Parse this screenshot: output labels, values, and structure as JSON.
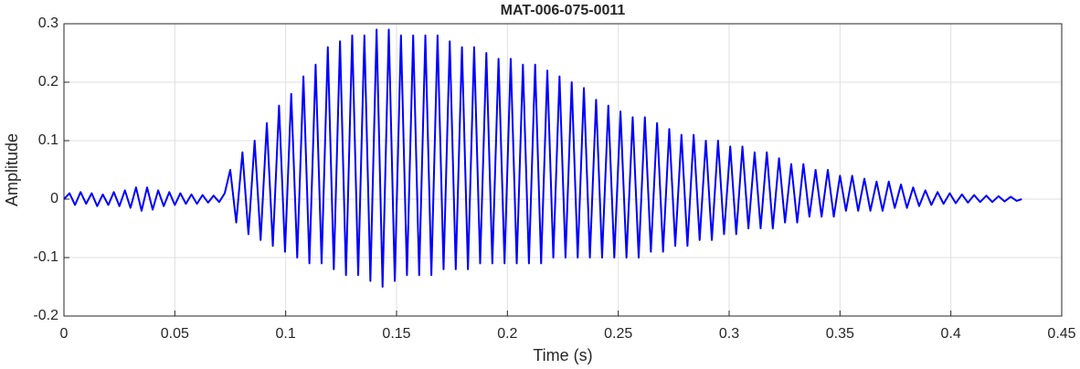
{
  "chart_data": {
    "type": "line",
    "title": "MAT-006-075-0011",
    "x_label": "Time (s)",
    "y_label": "Amplitude",
    "xlim": [
      0,
      0.45
    ],
    "ylim": [
      -0.2,
      0.3
    ],
    "xticks": [
      0,
      0.05,
      0.1,
      0.15,
      0.2,
      0.25,
      0.3,
      0.35,
      0.4,
      0.45
    ],
    "yticks": [
      -0.2,
      -0.1,
      0,
      0.1,
      0.2,
      0.3
    ],
    "grid": true,
    "x": [
      0,
      0.0025,
      0.005,
      0.0075,
      0.01,
      0.0125,
      0.015,
      0.0175,
      0.02,
      0.0225,
      0.025,
      0.0275,
      0.03,
      0.0325,
      0.035,
      0.0375,
      0.04,
      0.0425,
      0.045,
      0.0475,
      0.05,
      0.0525,
      0.055,
      0.0575,
      0.06,
      0.0625,
      0.065,
      0.0675,
      0.07,
      0.0725,
      0.075,
      0.0777,
      0.0805,
      0.0832,
      0.086,
      0.0887,
      0.0915,
      0.0942,
      0.097,
      0.0997,
      0.1025,
      0.1052,
      0.108,
      0.1107,
      0.1135,
      0.1162,
      0.119,
      0.1217,
      0.1245,
      0.1272,
      0.13,
      0.1327,
      0.1355,
      0.1382,
      0.141,
      0.1437,
      0.1465,
      0.1492,
      0.152,
      0.1547,
      0.1575,
      0.1602,
      0.163,
      0.1657,
      0.1685,
      0.1712,
      0.174,
      0.1767,
      0.1795,
      0.1822,
      0.185,
      0.1877,
      0.1905,
      0.1932,
      0.196,
      0.1987,
      0.2015,
      0.2042,
      0.207,
      0.2097,
      0.2125,
      0.2152,
      0.218,
      0.2207,
      0.2235,
      0.2262,
      0.229,
      0.2317,
      0.2345,
      0.2372,
      0.24,
      0.2427,
      0.2455,
      0.2482,
      0.251,
      0.2537,
      0.2565,
      0.2592,
      0.262,
      0.2647,
      0.2675,
      0.2702,
      0.273,
      0.2757,
      0.2785,
      0.2812,
      0.284,
      0.2867,
      0.2895,
      0.2922,
      0.295,
      0.2977,
      0.3005,
      0.3032,
      0.306,
      0.3087,
      0.3115,
      0.3142,
      0.317,
      0.3197,
      0.3225,
      0.3252,
      0.328,
      0.3307,
      0.3335,
      0.3362,
      0.339,
      0.3417,
      0.3445,
      0.3472,
      0.35,
      0.3527,
      0.3555,
      0.3582,
      0.361,
      0.3637,
      0.3665,
      0.3692,
      0.372,
      0.3747,
      0.3775,
      0.3802,
      0.383,
      0.3857,
      0.3885,
      0.3912,
      0.394,
      0.3967,
      0.3995,
      0.4022,
      0.405,
      0.4077,
      0.4105,
      0.4132,
      0.416,
      0.4187,
      0.4215,
      0.4242,
      0.427,
      0.4297,
      0.432
    ],
    "series": [
      {
        "color": "#0000ff",
        "values": [
          0,
          0.01,
          -0.01,
          0.012,
          -0.008,
          0.01,
          -0.012,
          0.008,
          -0.01,
          0.012,
          -0.012,
          0.015,
          -0.015,
          0.02,
          -0.02,
          0.02,
          -0.018,
          0.015,
          -0.012,
          0.012,
          -0.01,
          0.01,
          -0.008,
          0.008,
          -0.008,
          0.007,
          -0.006,
          0.006,
          -0.005,
          0.01,
          0.05,
          -0.04,
          0.08,
          -0.06,
          0.1,
          -0.07,
          0.13,
          -0.08,
          0.16,
          -0.09,
          0.18,
          -0.1,
          0.21,
          -0.11,
          0.23,
          -0.11,
          0.26,
          -0.12,
          0.27,
          -0.13,
          0.28,
          -0.13,
          0.28,
          -0.14,
          0.29,
          -0.15,
          0.29,
          -0.14,
          0.28,
          -0.13,
          0.28,
          -0.13,
          0.28,
          -0.13,
          0.28,
          -0.12,
          0.27,
          -0.12,
          0.26,
          -0.12,
          0.26,
          -0.11,
          0.25,
          -0.11,
          0.24,
          -0.11,
          0.24,
          -0.11,
          0.23,
          -0.11,
          0.23,
          -0.11,
          0.22,
          -0.1,
          0.21,
          -0.1,
          0.2,
          -0.1,
          0.19,
          -0.1,
          0.17,
          -0.1,
          0.16,
          -0.1,
          0.15,
          -0.1,
          0.14,
          -0.1,
          0.14,
          -0.09,
          0.13,
          -0.09,
          0.12,
          -0.08,
          0.11,
          -0.08,
          0.11,
          -0.07,
          0.1,
          -0.07,
          0.1,
          -0.06,
          0.09,
          -0.06,
          0.09,
          -0.05,
          0.08,
          -0.05,
          0.08,
          -0.05,
          0.07,
          -0.04,
          0.06,
          -0.04,
          0.06,
          -0.03,
          0.05,
          -0.03,
          0.05,
          -0.03,
          0.04,
          -0.02,
          0.04,
          -0.02,
          0.035,
          -0.02,
          0.03,
          -0.02,
          0.03,
          -0.015,
          0.025,
          -0.015,
          0.02,
          -0.012,
          0.015,
          -0.01,
          0.012,
          -0.008,
          0.01,
          -0.007,
          0.008,
          -0.006,
          0.007,
          -0.005,
          0.006,
          -0.005,
          0.005,
          -0.004,
          0.004,
          -0.003,
          0
        ]
      }
    ]
  }
}
